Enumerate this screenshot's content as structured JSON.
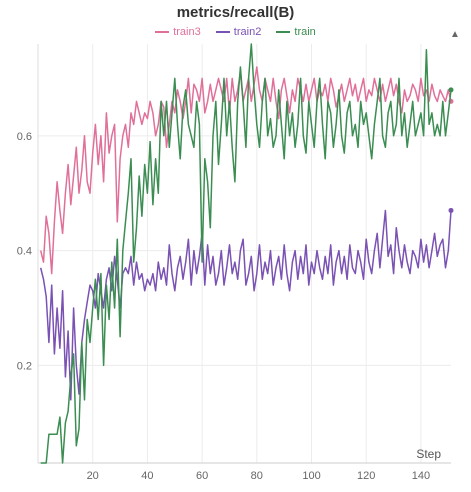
{
  "chart_data": {
    "type": "line",
    "title": "metrics/recall(B)",
    "xlabel": "Step",
    "ylabel": "",
    "xlim": [
      0,
      151
    ],
    "ylim": [
      0.03,
      0.76
    ],
    "xticks": [
      20,
      40,
      60,
      80,
      100,
      120,
      140
    ],
    "yticks": [
      0.2,
      0.4,
      0.6
    ],
    "legend": "top-center",
    "grid": true,
    "series": [
      {
        "name": "train3",
        "color": "#e0709a",
        "values": [
          0.4,
          0.38,
          0.46,
          0.43,
          0.36,
          0.45,
          0.52,
          0.47,
          0.43,
          0.5,
          0.55,
          0.48,
          0.53,
          0.58,
          0.5,
          0.54,
          0.6,
          0.52,
          0.5,
          0.57,
          0.62,
          0.55,
          0.6,
          0.52,
          0.64,
          0.57,
          0.6,
          0.62,
          0.45,
          0.56,
          0.6,
          0.62,
          0.58,
          0.64,
          0.62,
          0.66,
          0.64,
          0.62,
          0.64,
          0.63,
          0.66,
          0.64,
          0.6,
          0.62,
          0.66,
          0.65,
          0.58,
          0.62,
          0.66,
          0.64,
          0.68,
          0.66,
          0.63,
          0.66,
          0.7,
          0.64,
          0.69,
          0.68,
          0.66,
          0.7,
          0.64,
          0.66,
          0.69,
          0.66,
          0.68,
          0.7,
          0.68,
          0.66,
          0.7,
          0.64,
          0.7,
          0.66,
          0.68,
          0.71,
          0.66,
          0.68,
          0.7,
          0.66,
          0.69,
          0.72,
          0.68,
          0.66,
          0.7,
          0.68,
          0.66,
          0.7,
          0.66,
          0.63,
          0.68,
          0.7,
          0.67,
          0.64,
          0.68,
          0.66,
          0.7,
          0.68,
          0.66,
          0.69,
          0.66,
          0.68,
          0.7,
          0.66,
          0.68,
          0.67,
          0.69,
          0.66,
          0.7,
          0.68,
          0.65,
          0.67,
          0.69,
          0.66,
          0.68,
          0.7,
          0.67,
          0.69,
          0.66,
          0.68,
          0.7,
          0.66,
          0.68,
          0.67,
          0.7,
          0.68,
          0.66,
          0.69,
          0.66,
          0.68,
          0.7,
          0.67,
          0.69,
          0.66,
          0.64,
          0.68,
          0.66,
          0.67,
          0.69,
          0.68,
          0.66,
          0.7,
          0.67,
          0.68,
          0.66,
          0.69,
          0.67,
          0.66,
          0.68,
          0.67,
          0.66,
          0.68,
          0.66
        ]
      },
      {
        "name": "train2",
        "color": "#7a52b4",
        "values": [
          0.37,
          0.35,
          0.32,
          0.24,
          0.34,
          0.22,
          0.3,
          0.23,
          0.33,
          0.18,
          0.26,
          0.14,
          0.3,
          0.2,
          0.15,
          0.24,
          0.28,
          0.31,
          0.34,
          0.33,
          0.3,
          0.36,
          0.33,
          0.3,
          0.35,
          0.37,
          0.33,
          0.39,
          0.35,
          0.3,
          0.36,
          0.37,
          0.36,
          0.39,
          0.34,
          0.38,
          0.35,
          0.36,
          0.33,
          0.35,
          0.34,
          0.36,
          0.33,
          0.38,
          0.35,
          0.37,
          0.34,
          0.41,
          0.36,
          0.33,
          0.37,
          0.39,
          0.35,
          0.38,
          0.42,
          0.34,
          0.4,
          0.36,
          0.39,
          0.43,
          0.34,
          0.41,
          0.36,
          0.39,
          0.34,
          0.36,
          0.4,
          0.34,
          0.37,
          0.41,
          0.36,
          0.38,
          0.35,
          0.4,
          0.42,
          0.34,
          0.36,
          0.39,
          0.33,
          0.36,
          0.41,
          0.35,
          0.38,
          0.36,
          0.4,
          0.34,
          0.37,
          0.39,
          0.35,
          0.41,
          0.36,
          0.33,
          0.38,
          0.4,
          0.35,
          0.39,
          0.36,
          0.41,
          0.34,
          0.38,
          0.36,
          0.4,
          0.37,
          0.35,
          0.39,
          0.36,
          0.41,
          0.34,
          0.38,
          0.4,
          0.36,
          0.39,
          0.35,
          0.41,
          0.37,
          0.36,
          0.4,
          0.38,
          0.35,
          0.42,
          0.38,
          0.36,
          0.4,
          0.43,
          0.37,
          0.42,
          0.47,
          0.39,
          0.41,
          0.36,
          0.44,
          0.4,
          0.37,
          0.41,
          0.38,
          0.36,
          0.4,
          0.39,
          0.37,
          0.42,
          0.38,
          0.41,
          0.37,
          0.4,
          0.43,
          0.39,
          0.41,
          0.42,
          0.37,
          0.4,
          0.47
        ]
      },
      {
        "name": "train",
        "color": "#3b8d52",
        "values": [
          0.03,
          0.03,
          0.03,
          0.08,
          0.08,
          0.08,
          0.08,
          0.11,
          0.03,
          0.1,
          0.12,
          0.18,
          0.22,
          0.06,
          0.09,
          0.24,
          0.14,
          0.28,
          0.24,
          0.3,
          0.35,
          0.28,
          0.36,
          0.2,
          0.34,
          0.28,
          0.38,
          0.3,
          0.42,
          0.25,
          0.4,
          0.45,
          0.5,
          0.56,
          0.38,
          0.44,
          0.53,
          0.46,
          0.55,
          0.5,
          0.59,
          0.48,
          0.56,
          0.5,
          0.66,
          0.6,
          0.66,
          0.58,
          0.64,
          0.7,
          0.62,
          0.56,
          0.65,
          0.68,
          0.62,
          0.6,
          0.58,
          0.66,
          0.62,
          0.38,
          0.56,
          0.52,
          0.44,
          0.6,
          0.66,
          0.55,
          0.62,
          0.7,
          0.6,
          0.66,
          0.58,
          0.52,
          0.66,
          0.72,
          0.66,
          0.58,
          0.7,
          0.76,
          0.68,
          0.62,
          0.58,
          0.66,
          0.7,
          0.6,
          0.63,
          0.58,
          0.6,
          0.68,
          0.62,
          0.56,
          0.66,
          0.6,
          0.64,
          0.58,
          0.62,
          0.7,
          0.6,
          0.57,
          0.66,
          0.62,
          0.58,
          0.66,
          0.7,
          0.62,
          0.56,
          0.66,
          0.64,
          0.58,
          0.62,
          0.68,
          0.6,
          0.57,
          0.64,
          0.66,
          0.6,
          0.62,
          0.58,
          0.66,
          0.62,
          0.64,
          0.6,
          0.56,
          0.62,
          0.66,
          0.7,
          0.6,
          0.58,
          0.64,
          0.66,
          0.6,
          0.62,
          0.7,
          0.6,
          0.64,
          0.58,
          0.62,
          0.66,
          0.6,
          0.62,
          0.64,
          0.6,
          0.75,
          0.62,
          0.64,
          0.6,
          0.62,
          0.6,
          0.66,
          0.6,
          0.64,
          0.68
        ]
      }
    ]
  },
  "ui": {
    "menu_icon": "more-options-icon"
  }
}
